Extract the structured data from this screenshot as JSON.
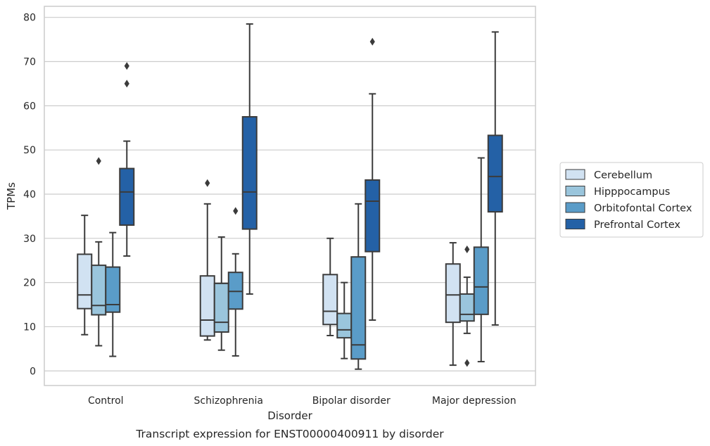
{
  "chart_data": {
    "type": "box",
    "title": "",
    "caption": "Transcript expression for ENST00000400911 by disorder",
    "xlabel": "Disorder",
    "ylabel": "TPMs",
    "ylim": [
      -3.3,
      82.5
    ],
    "yticks": [
      0,
      10,
      20,
      30,
      40,
      50,
      60,
      70,
      80
    ],
    "grid": "horizontal",
    "legend_position": "right",
    "categories": [
      "Control",
      "Schizophrenia",
      "Bipolar disorder",
      "Major depression"
    ],
    "series": [
      {
        "name": "Cerebellum",
        "color": "#d1e2f2",
        "boxes": [
          {
            "min": 8.2,
            "q1": 14.1,
            "median": 17.2,
            "q3": 26.4,
            "max": 35.2,
            "outliers": []
          },
          {
            "min": 7.0,
            "q1": 7.9,
            "median": 11.5,
            "q3": 21.5,
            "max": 37.8,
            "outliers": [
              42.5
            ]
          },
          {
            "min": 8.0,
            "q1": 10.5,
            "median": 13.5,
            "q3": 21.8,
            "max": 30.0,
            "outliers": []
          },
          {
            "min": 1.3,
            "q1": 11.0,
            "median": 17.2,
            "q3": 24.2,
            "max": 29.0,
            "outliers": []
          }
        ]
      },
      {
        "name": "Hipppocampus",
        "color": "#9ac5dc",
        "boxes": [
          {
            "min": 5.7,
            "q1": 12.7,
            "median": 14.8,
            "q3": 23.9,
            "max": 29.2,
            "outliers": [
              47.5
            ]
          },
          {
            "min": 4.7,
            "q1": 8.8,
            "median": 11.0,
            "q3": 19.8,
            "max": 30.3,
            "outliers": []
          },
          {
            "min": 2.8,
            "q1": 7.5,
            "median": 9.3,
            "q3": 13.0,
            "max": 20.0,
            "outliers": []
          },
          {
            "min": 8.5,
            "q1": 11.3,
            "median": 12.8,
            "q3": 17.4,
            "max": 21.2,
            "outliers": [
              27.5,
              1.8
            ]
          }
        ]
      },
      {
        "name": "Orbitofontal Cortex",
        "color": "#5a9cc8",
        "boxes": [
          {
            "min": 3.3,
            "q1": 13.3,
            "median": 15.0,
            "q3": 23.5,
            "max": 31.3,
            "outliers": []
          },
          {
            "min": 3.4,
            "q1": 14.0,
            "median": 18.0,
            "q3": 22.3,
            "max": 26.5,
            "outliers": [
              36.2
            ]
          },
          {
            "min": 0.4,
            "q1": 2.7,
            "median": 5.9,
            "q3": 25.8,
            "max": 37.8,
            "outliers": []
          },
          {
            "min": 2.1,
            "q1": 12.8,
            "median": 19.0,
            "q3": 28.0,
            "max": 48.2,
            "outliers": []
          }
        ]
      },
      {
        "name": "Prefrontal Cortex",
        "color": "#2461a6",
        "boxes": [
          {
            "min": 26.0,
            "q1": 33.0,
            "median": 40.5,
            "q3": 45.8,
            "max": 52.0,
            "outliers": [
              69.0,
              65.0
            ]
          },
          {
            "min": 17.4,
            "q1": 32.1,
            "median": 40.5,
            "q3": 57.5,
            "max": 78.5,
            "outliers": []
          },
          {
            "min": 11.5,
            "q1": 27.0,
            "median": 38.4,
            "q3": 43.2,
            "max": 62.7,
            "outliers": [
              74.5
            ]
          },
          {
            "min": 10.4,
            "q1": 36.0,
            "median": 44.0,
            "q3": 53.3,
            "max": 76.7,
            "outliers": []
          }
        ]
      }
    ]
  }
}
